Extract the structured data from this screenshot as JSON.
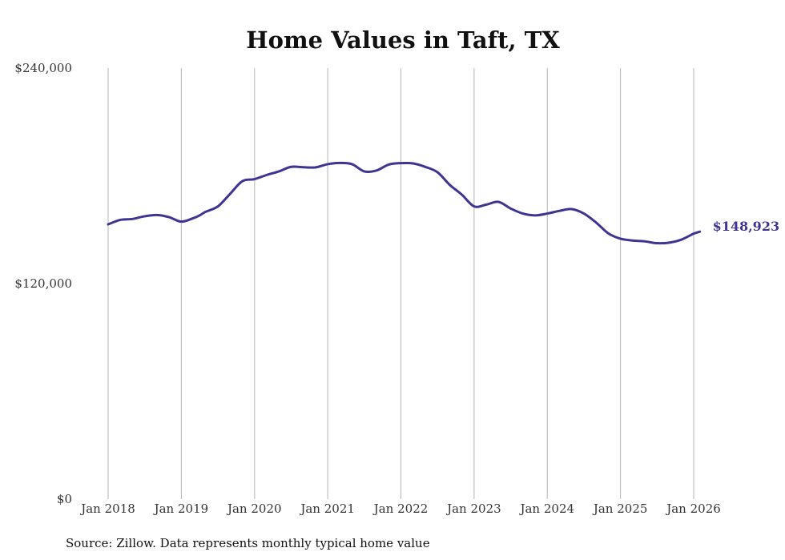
{
  "chart_data": {
    "type": "line",
    "title": "Home Values in Taft, TX",
    "xlabel": "",
    "ylabel": "",
    "ylim": [
      0,
      240000
    ],
    "y_ticks": [
      {
        "value": 0,
        "label": "$0"
      },
      {
        "value": 120000,
        "label": "$120,000"
      },
      {
        "value": 240000,
        "label": "$240,000"
      }
    ],
    "x_range": [
      2018.0,
      2026.0
    ],
    "x_ticks": [
      {
        "value": 2018,
        "label": "Jan 2018"
      },
      {
        "value": 2019,
        "label": "Jan 2019"
      },
      {
        "value": 2020,
        "label": "Jan 2020"
      },
      {
        "value": 2021,
        "label": "Jan 2021"
      },
      {
        "value": 2022,
        "label": "Jan 2022"
      },
      {
        "value": 2023,
        "label": "Jan 2023"
      },
      {
        "value": 2024,
        "label": "Jan 2024"
      },
      {
        "value": 2025,
        "label": "Jan 2025"
      },
      {
        "value": 2026,
        "label": "Jan 2026"
      }
    ],
    "grid": "vertical",
    "series": [
      {
        "name": "Typical home value",
        "color": "#3d3591",
        "end_label": "$148,923",
        "x": [
          2018.0,
          2018.167,
          2018.333,
          2018.5,
          2018.667,
          2018.833,
          2019.0,
          2019.167,
          2019.25,
          2019.333,
          2019.5,
          2019.667,
          2019.833,
          2020.0,
          2020.167,
          2020.333,
          2020.5,
          2020.667,
          2020.833,
          2021.0,
          2021.167,
          2021.333,
          2021.5,
          2021.667,
          2021.833,
          2022.0,
          2022.167,
          2022.333,
          2022.5,
          2022.667,
          2022.833,
          2023.0,
          2023.167,
          2023.333,
          2023.5,
          2023.667,
          2023.833,
          2024.0,
          2024.167,
          2024.333,
          2024.5,
          2024.667,
          2024.833,
          2025.0,
          2025.167,
          2025.333,
          2025.5,
          2025.667,
          2025.833,
          2026.0,
          2026.083
        ],
        "values": [
          153000,
          155500,
          156000,
          157500,
          158200,
          157000,
          154500,
          156500,
          158000,
          160000,
          163000,
          170000,
          177000,
          178200,
          180500,
          182500,
          185000,
          184800,
          184700,
          186500,
          187200,
          186500,
          182500,
          183000,
          186300,
          187100,
          186900,
          185000,
          182000,
          175000,
          169500,
          163000,
          164000,
          165500,
          161800,
          159000,
          158000,
          159000,
          160500,
          161500,
          159000,
          154000,
          148000,
          145000,
          144000,
          143500,
          142500,
          142800,
          144500,
          147800,
          148923
        ]
      }
    ]
  },
  "footer": {
    "source": "Source: Zillow. Data represents monthly typical home value"
  }
}
